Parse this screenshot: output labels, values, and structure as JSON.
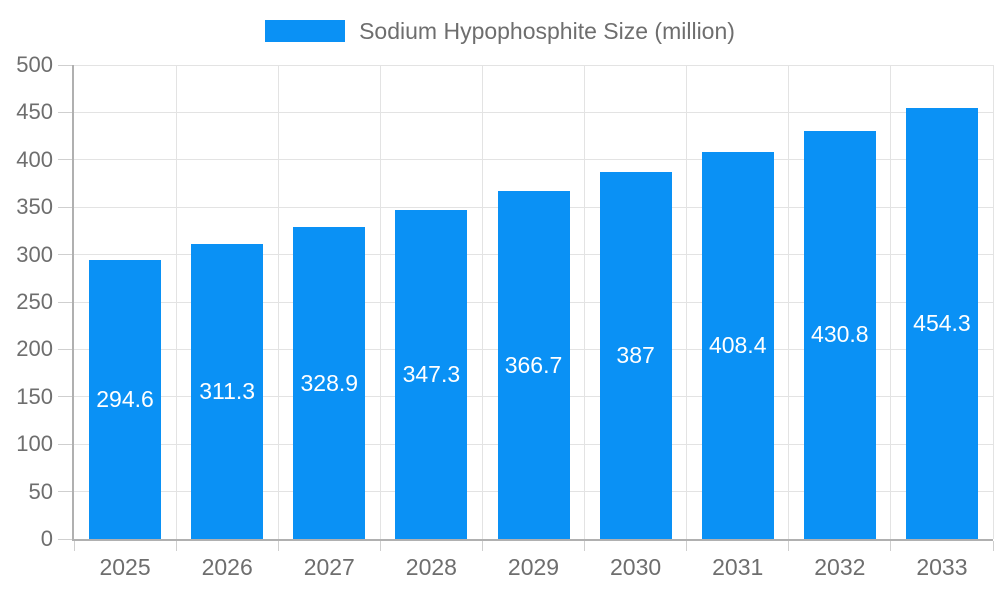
{
  "legend": {
    "label": "Sodium Hypophosphite Size (million)"
  },
  "chart_data": {
    "type": "bar",
    "title": "Sodium Hypophosphite Size (million)",
    "categories": [
      "2025",
      "2026",
      "2027",
      "2028",
      "2029",
      "2030",
      "2031",
      "2032",
      "2033"
    ],
    "values": [
      294.6,
      311.3,
      328.9,
      347.3,
      366.7,
      387,
      408.4,
      430.8,
      454.3
    ],
    "value_labels": [
      "294.6",
      "311.3",
      "328.9",
      "347.3",
      "366.7",
      "387",
      "408.4",
      "430.8",
      "454.3"
    ],
    "series_name": "Sodium Hypophosphite Size (million)",
    "xlabel": "",
    "ylabel": "",
    "ylim": [
      0,
      500
    ],
    "ytick_step": 50,
    "yticks": [
      0,
      50,
      100,
      150,
      200,
      250,
      300,
      350,
      400,
      450,
      500
    ],
    "grid": true,
    "legend_position": "top",
    "colors": {
      "bar": "#0a91f5",
      "bar_value_text": "#ffffff",
      "axis_text": "#6e6e6e",
      "axis_line": "#b0b0b0",
      "gridline": "#e3e3e3",
      "tick": "#cfcfcf",
      "background": "#ffffff"
    }
  }
}
